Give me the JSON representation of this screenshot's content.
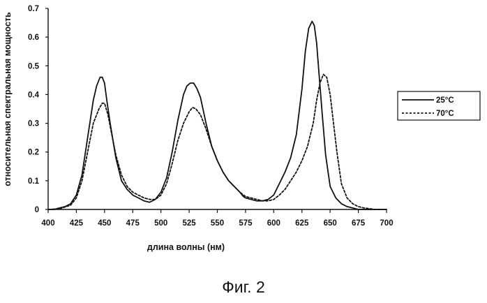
{
  "caption": "Фиг. 2",
  "chart_data": {
    "type": "line",
    "title": "",
    "xlabel": "длина волны (нм)",
    "ylabel": "относительная спектральная мощность",
    "xlim": [
      400,
      700
    ],
    "ylim": [
      0,
      0.7
    ],
    "xticks": [
      400,
      425,
      450,
      475,
      500,
      525,
      550,
      575,
      600,
      625,
      650,
      675,
      700
    ],
    "yticks": [
      "0",
      "0.1",
      "0.2",
      "0.3",
      "0.4",
      "0.5",
      "0.6",
      "0.7"
    ],
    "grid": false,
    "legend_position": "right",
    "series": [
      {
        "name": "25°C",
        "style": "solid",
        "color": "#111111",
        "x": [
          400,
          405,
          410,
          415,
          420,
          425,
          430,
          435,
          440,
          443,
          446,
          448,
          450,
          452,
          455,
          460,
          465,
          470,
          475,
          480,
          485,
          490,
          495,
          500,
          505,
          510,
          515,
          520,
          523,
          526,
          529,
          532,
          535,
          540,
          545,
          550,
          555,
          560,
          565,
          570,
          573,
          575,
          580,
          585,
          590,
          595,
          600,
          605,
          610,
          615,
          620,
          625,
          628,
          631,
          634,
          636,
          638,
          640,
          643,
          646,
          650,
          655,
          660,
          665,
          670,
          675,
          680,
          685,
          690,
          700
        ],
        "y": [
          0,
          0,
          0.005,
          0.01,
          0.02,
          0.05,
          0.12,
          0.25,
          0.38,
          0.43,
          0.46,
          0.46,
          0.44,
          0.38,
          0.3,
          0.18,
          0.1,
          0.07,
          0.05,
          0.04,
          0.03,
          0.025,
          0.035,
          0.06,
          0.11,
          0.2,
          0.31,
          0.4,
          0.43,
          0.44,
          0.44,
          0.42,
          0.39,
          0.3,
          0.22,
          0.17,
          0.13,
          0.1,
          0.08,
          0.06,
          0.045,
          0.04,
          0.035,
          0.03,
          0.03,
          0.035,
          0.05,
          0.09,
          0.13,
          0.18,
          0.26,
          0.42,
          0.55,
          0.63,
          0.655,
          0.64,
          0.58,
          0.48,
          0.33,
          0.19,
          0.08,
          0.04,
          0.02,
          0.01,
          0.005,
          0,
          0,
          0,
          0,
          0
        ]
      },
      {
        "name": "70°C",
        "style": "dashed",
        "color": "#111111",
        "x": [
          400,
          410,
          420,
          425,
          430,
          435,
          440,
          445,
          448,
          450,
          453,
          456,
          460,
          465,
          470,
          475,
          480,
          485,
          490,
          495,
          500,
          505,
          510,
          515,
          520,
          525,
          528,
          531,
          535,
          540,
          545,
          550,
          555,
          560,
          565,
          570,
          575,
          580,
          585,
          590,
          595,
          600,
          605,
          610,
          615,
          620,
          625,
          630,
          635,
          638,
          641,
          644,
          647,
          650,
          653,
          656,
          660,
          665,
          670,
          675,
          680,
          690,
          700
        ],
        "y": [
          0,
          0.002,
          0.015,
          0.04,
          0.1,
          0.2,
          0.3,
          0.35,
          0.37,
          0.37,
          0.33,
          0.27,
          0.19,
          0.12,
          0.08,
          0.06,
          0.05,
          0.04,
          0.035,
          0.035,
          0.05,
          0.09,
          0.16,
          0.24,
          0.3,
          0.34,
          0.355,
          0.35,
          0.33,
          0.28,
          0.22,
          0.17,
          0.13,
          0.1,
          0.08,
          0.06,
          0.045,
          0.04,
          0.035,
          0.03,
          0.03,
          0.035,
          0.05,
          0.07,
          0.1,
          0.13,
          0.17,
          0.22,
          0.3,
          0.38,
          0.44,
          0.47,
          0.46,
          0.4,
          0.3,
          0.2,
          0.09,
          0.04,
          0.02,
          0.01,
          0.005,
          0,
          0
        ]
      }
    ]
  }
}
